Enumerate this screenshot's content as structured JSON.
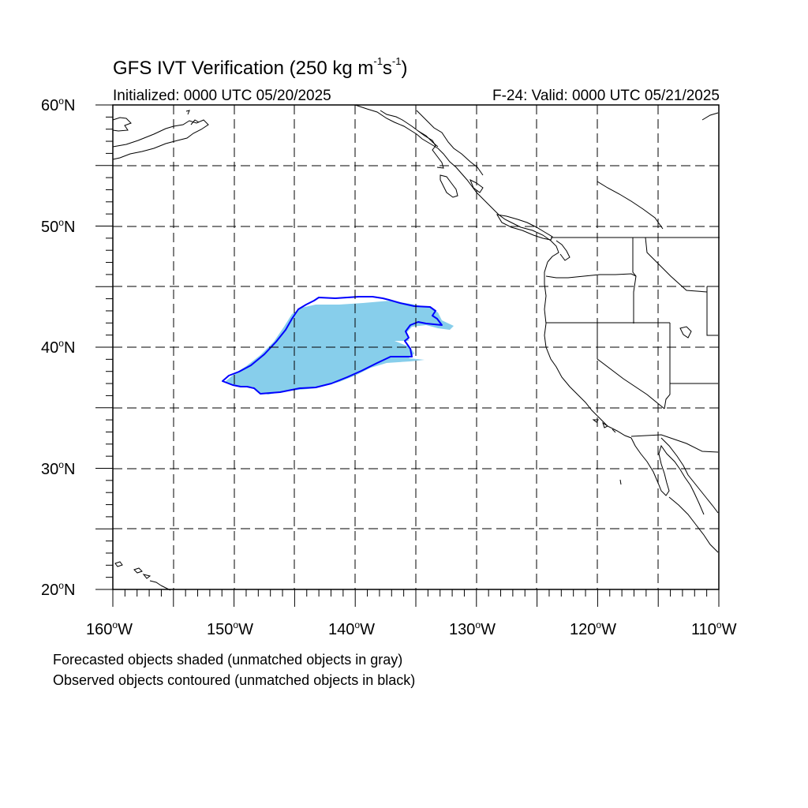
{
  "title": {
    "text": "GFS IVT Verification (250 kg m",
    "sup1": "-1",
    "mid": "s",
    "sup2": "-1",
    "end": ")"
  },
  "initialized": "Initialized: 0000 UTC 05/20/2025",
  "valid": "F-24: Valid: 0000 UTC 05/21/2025",
  "lat_labels": [
    {
      "num": "60",
      "deg": "o",
      "hem": "N"
    },
    {
      "num": "50",
      "deg": "o",
      "hem": "N"
    },
    {
      "num": "40",
      "deg": "o",
      "hem": "N"
    },
    {
      "num": "30",
      "deg": "o",
      "hem": "N"
    },
    {
      "num": "20",
      "deg": "o",
      "hem": "N"
    }
  ],
  "lon_labels": [
    {
      "num": "160",
      "deg": "o",
      "hem": "W"
    },
    {
      "num": "150",
      "deg": "o",
      "hem": "W"
    },
    {
      "num": "140",
      "deg": "o",
      "hem": "W"
    },
    {
      "num": "130",
      "deg": "o",
      "hem": "W"
    },
    {
      "num": "120",
      "deg": "o",
      "hem": "W"
    },
    {
      "num": "110",
      "deg": "o",
      "hem": "W"
    }
  ],
  "notes": [
    "Forecasted objects shaded (unmatched objects in gray)",
    "Observed objects contoured (unmatched objects in black)"
  ],
  "colors": {
    "forecast_fill": "#87ceeb",
    "observed_contour": "#0000ff",
    "coastline": "#000000",
    "grid": "#000000"
  },
  "map_extent": {
    "lon_min": -160,
    "lon_max": -110,
    "lat_min": 20,
    "lat_max": 60
  }
}
